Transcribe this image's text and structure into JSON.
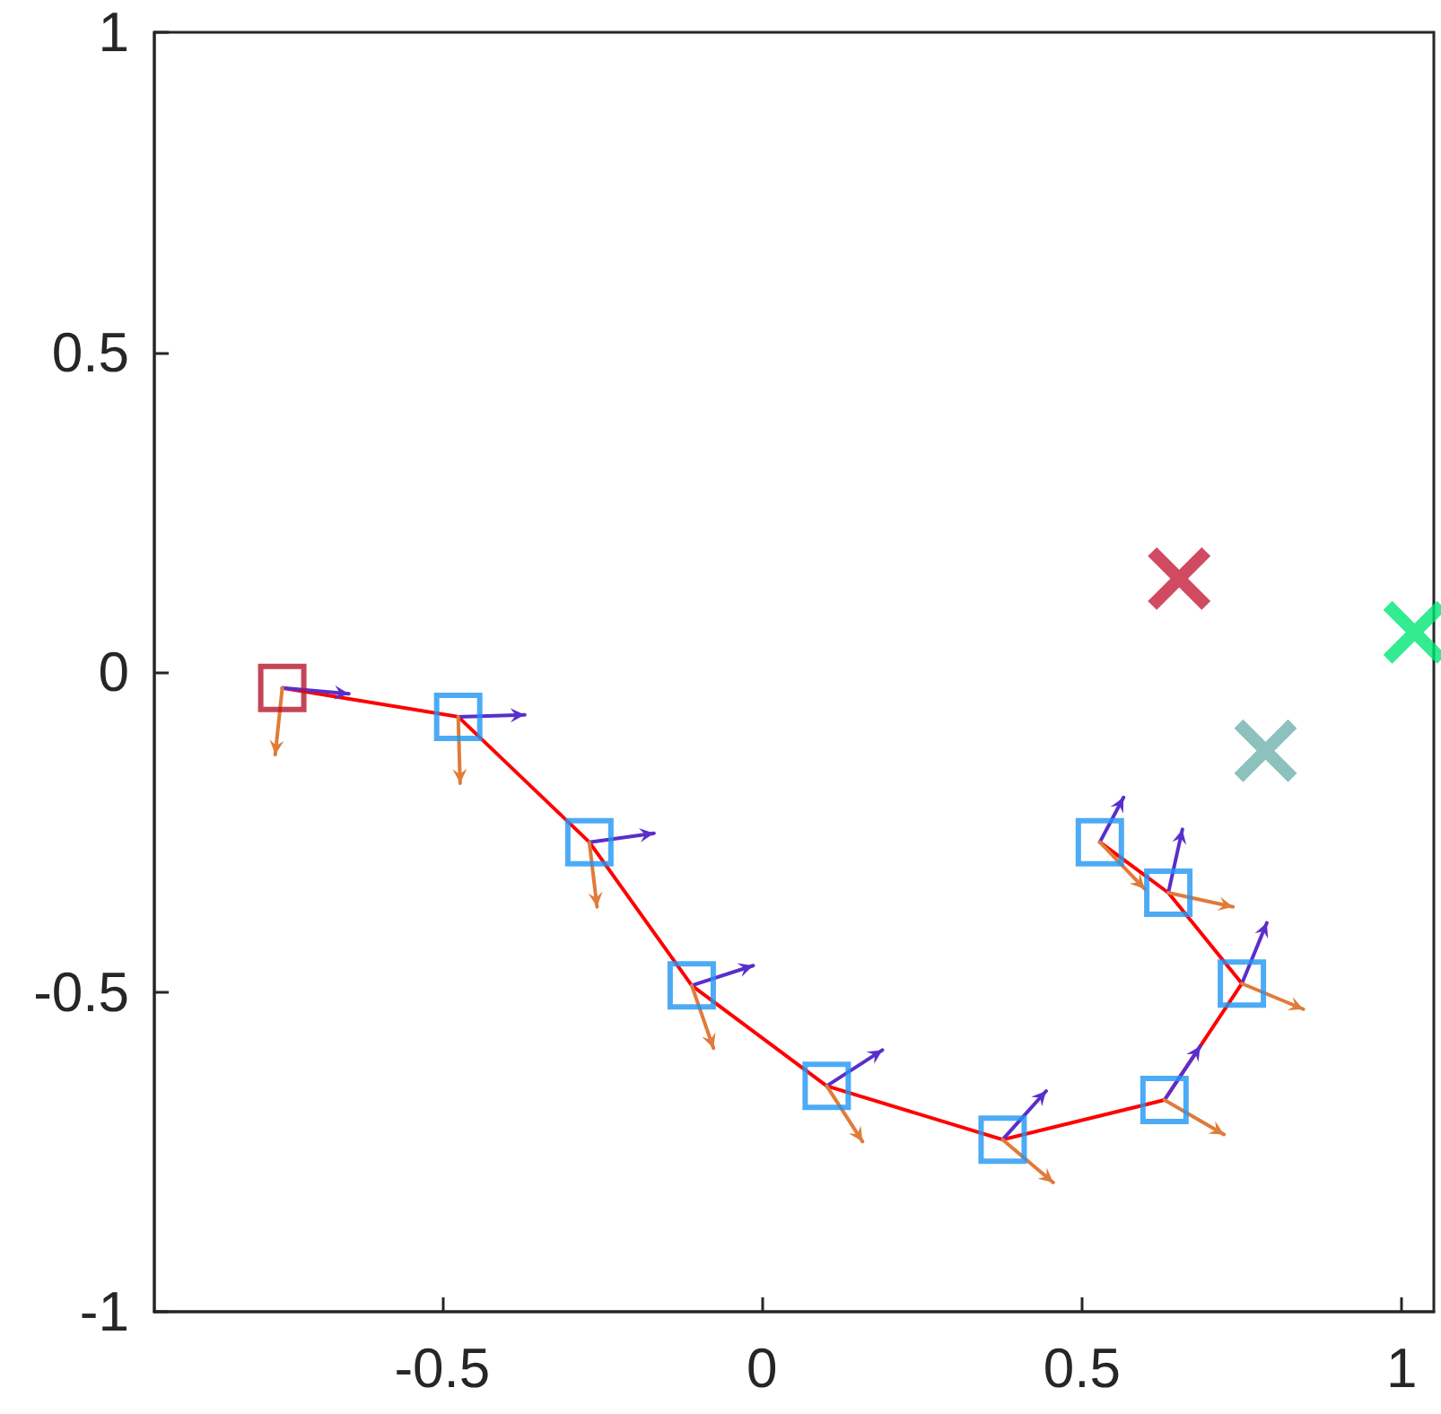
{
  "chart_data": {
    "type": "line",
    "xlim": [
      -0.95,
      1.05
    ],
    "xticks": [
      -0.5,
      0,
      0.5,
      1
    ],
    "ylim": [
      -1,
      1
    ],
    "yticks": [
      -1,
      -0.5,
      0,
      0.5,
      1
    ],
    "grid": false,
    "series": [
      {
        "color": "#ff0000",
        "marker": "none",
        "x": [
          -0.75,
          -0.475,
          -0.27,
          -0.11,
          0.101,
          0.376,
          0.629,
          0.75,
          0.635,
          0.528
        ],
        "values": [
          -0.025,
          -0.07,
          -0.266,
          -0.49,
          -0.647,
          -0.731,
          -0.669,
          -0.487,
          -0.345,
          -0.266
        ]
      },
      {
        "type": "scatter",
        "marker": "square",
        "colors": [
          "#b5172e",
          "#2196f3",
          "#2196f3",
          "#2196f3",
          "#2196f3",
          "#2196f3",
          "#2196f3",
          "#2196f3",
          "#2196f3",
          "#2196f3"
        ],
        "x": [
          -0.75,
          -0.475,
          -0.27,
          -0.11,
          0.101,
          0.376,
          0.629,
          0.75,
          0.635,
          0.528
        ],
        "values": [
          -0.025,
          -0.07,
          -0.266,
          -0.49,
          -0.647,
          -0.731,
          -0.669,
          -0.487,
          -0.345,
          -0.266
        ]
      },
      {
        "color": "#5a2ecc",
        "marker": "none",
        "x": [
          -0.75,
          -0.646,
          null,
          -0.475,
          -0.371,
          null,
          -0.27,
          -0.169,
          null,
          -0.11,
          -0.014,
          null,
          0.101,
          0.188,
          null,
          0.376,
          0.444,
          null,
          0.629,
          0.685,
          null,
          0.75,
          0.789,
          null,
          0.635,
          0.657,
          null,
          0.528,
          0.565
        ],
        "values": [
          -0.025,
          -0.034,
          null,
          -0.07,
          -0.067,
          null,
          -0.266,
          -0.252,
          null,
          -0.49,
          -0.459,
          null,
          -0.647,
          -0.591,
          null,
          -0.731,
          -0.655,
          null,
          -0.669,
          -0.585,
          null,
          -0.487,
          -0.392,
          null,
          -0.345,
          -0.246,
          null,
          -0.266,
          -0.196
        ]
      },
      {
        "color": "#e07b39",
        "marker": "none",
        "x": [
          -0.75,
          -0.761,
          null,
          -0.475,
          -0.472,
          null,
          -0.27,
          -0.258,
          null,
          -0.11,
          -0.076,
          null,
          0.101,
          0.157,
          null,
          0.376,
          0.455,
          null,
          0.629,
          0.722,
          null,
          0.75,
          0.846,
          null,
          0.635,
          0.736,
          null,
          0.528,
          0.598
        ],
        "values": [
          -0.025,
          -0.129,
          null,
          -0.07,
          -0.174,
          null,
          -0.266,
          -0.367,
          null,
          -0.49,
          -0.588,
          null,
          -0.647,
          -0.734,
          null,
          -0.731,
          -0.798,
          null,
          -0.669,
          -0.723,
          null,
          -0.487,
          -0.527,
          null,
          -0.345,
          -0.367,
          null,
          -0.266,
          -0.339
        ]
      },
      {
        "type": "scatter",
        "marker": "cross",
        "colors": [
          "#c41e3a",
          "#6fb1ad",
          "#00e676"
        ],
        "x": [
          0.652,
          0.787,
          1.02
        ],
        "values": [
          0.146,
          -0.123,
          0.062
        ]
      }
    ]
  }
}
